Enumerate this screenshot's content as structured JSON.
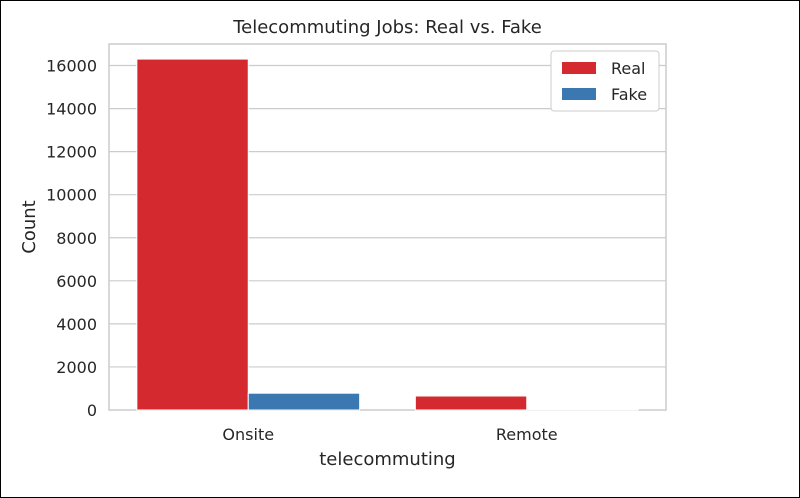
{
  "chart_data": {
    "type": "bar",
    "title": "Telecommuting Jobs: Real vs. Fake",
    "xlabel": "telecommuting",
    "ylabel": "Count",
    "categories": [
      "Onsite",
      "Remote"
    ],
    "series": [
      {
        "name": "Real",
        "values": [
          16300,
          650
        ],
        "color": "#d42a2f"
      },
      {
        "name": "Fake",
        "values": [
          780,
          20
        ],
        "color": "#3b77b0"
      }
    ],
    "ylim": [
      0,
      17000
    ],
    "yticks": [
      0,
      2000,
      4000,
      6000,
      8000,
      10000,
      12000,
      14000,
      16000
    ],
    "grid": true,
    "legend_position": "top-right"
  }
}
